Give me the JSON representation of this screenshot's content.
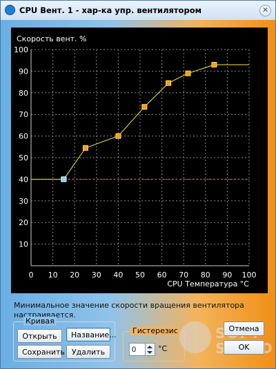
{
  "window": {
    "title": "CPU Вент. 1  - хар-ка упр. вентилятором"
  },
  "chart_data": {
    "type": "line",
    "title": "Скорость вент.  %",
    "xlabel": "CPU Температура °C",
    "ylabel": "Скорость вент.  %",
    "xlim": [
      0,
      100
    ],
    "ylim": [
      0,
      100
    ],
    "xticks": [
      0,
      10,
      20,
      30,
      40,
      50,
      60,
      70,
      80,
      90,
      100
    ],
    "yticks": [
      10,
      20,
      30,
      40,
      50,
      60,
      70,
      80,
      90,
      100
    ],
    "grid": true,
    "min_speed": 40,
    "series": [
      {
        "x": [
          15,
          25,
          40,
          52,
          63,
          72,
          84
        ],
        "y": [
          40,
          54.5,
          60,
          73.5,
          84.5,
          89,
          93
        ]
      }
    ]
  },
  "hint": "Минимальное значение скорости вращения вентилятора настраивается.",
  "curve_group": {
    "label": "Кривая",
    "open": "Открыть",
    "name": "Название...",
    "save": "Сохранить",
    "delete": "Удалить"
  },
  "hysteresis": {
    "label": "Гистерезис",
    "value": "0",
    "unit": "°C"
  },
  "buttons": {
    "cancel": "Отмена",
    "ok": "OK"
  },
  "watermark": {
    "line1": "SOFT",
    "line2": "SALAD"
  }
}
